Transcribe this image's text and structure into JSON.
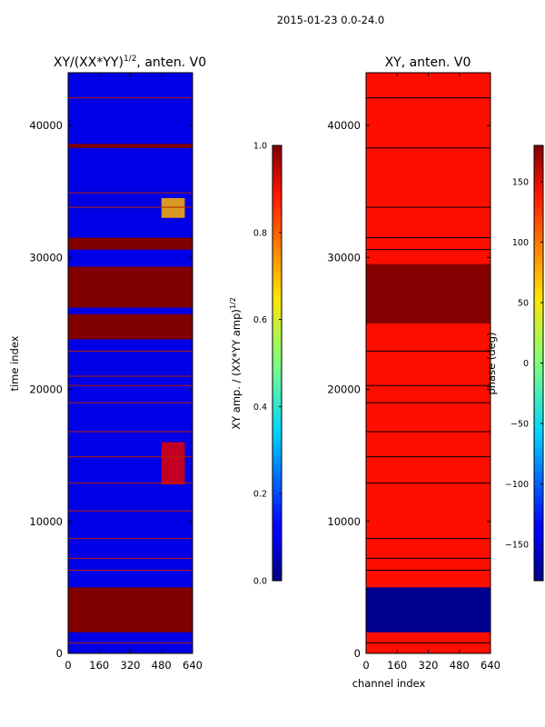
{
  "figure_title": "2015-01-23 0.0-24.0",
  "chart_data": [
    {
      "type": "heatmap",
      "title": "XY/(XX*YY)^1/2, anten. V0",
      "title_main": "XY/(XX*YY)",
      "title_sup": "1/2",
      "title_tail": ", anten. V0",
      "xlabel": "",
      "ylabel": "time index",
      "xlim": [
        0,
        640
      ],
      "ylim": [
        0,
        44000
      ],
      "xticks": [
        0,
        160,
        320,
        480,
        640
      ],
      "yticks": [
        0,
        10000,
        20000,
        30000,
        40000
      ],
      "colorbar": {
        "label_main": "XY amp. / (XX*YY amp)",
        "label_sup": "1/2",
        "range": [
          0.0,
          1.0
        ],
        "ticks": [
          "0.0",
          "0.2",
          "0.4",
          "0.6",
          "0.8",
          "1.0"
        ]
      },
      "dominant_value": 0.1,
      "bands": [
        {
          "from": 1600,
          "to": 5000,
          "value": 1.0
        },
        {
          "from": 23800,
          "to": 25700,
          "value": 1.0
        },
        {
          "from": 26200,
          "to": 29300,
          "value": 1.0
        },
        {
          "from": 30600,
          "to": 31500,
          "value": 1.0
        },
        {
          "from": 38300,
          "to": 38600,
          "value": 1.0
        }
      ],
      "lines": [
        800,
        6300,
        7200,
        8700,
        10800,
        12900,
        14900,
        16800,
        19000,
        20300,
        21000,
        22900,
        33800,
        34900,
        42100
      ],
      "bright_patches": [
        {
          "x_from": 480,
          "x_to": 600,
          "y_from": 12800,
          "y_to": 16000,
          "value": 0.9
        },
        {
          "x_from": 480,
          "x_to": 600,
          "y_from": 33000,
          "y_to": 34500,
          "value": 0.7
        }
      ]
    },
    {
      "type": "heatmap",
      "title": "XY, anten. V0",
      "xlabel": "channel index",
      "ylabel": "",
      "xlim": [
        0,
        640
      ],
      "ylim": [
        0,
        44000
      ],
      "xticks": [
        0,
        160,
        320,
        480,
        640
      ],
      "yticks": [
        0,
        10000,
        20000,
        30000,
        40000
      ],
      "colorbar": {
        "label_main": "phase (deg)",
        "range": [
          -180,
          180
        ],
        "ticks": [
          "−150",
          "−100",
          "−50",
          "0",
          "50",
          "100",
          "150"
        ]
      },
      "dominant_value": 130,
      "bands": [
        {
          "from": 1600,
          "to": 5000,
          "value": -175
        },
        {
          "from": 25000,
          "to": 29500,
          "value": 178
        }
      ],
      "lines": [
        800,
        6300,
        7200,
        8700,
        12900,
        14900,
        16800,
        19000,
        20300,
        22900,
        30600,
        31500,
        33800,
        38300,
        42100
      ]
    }
  ]
}
